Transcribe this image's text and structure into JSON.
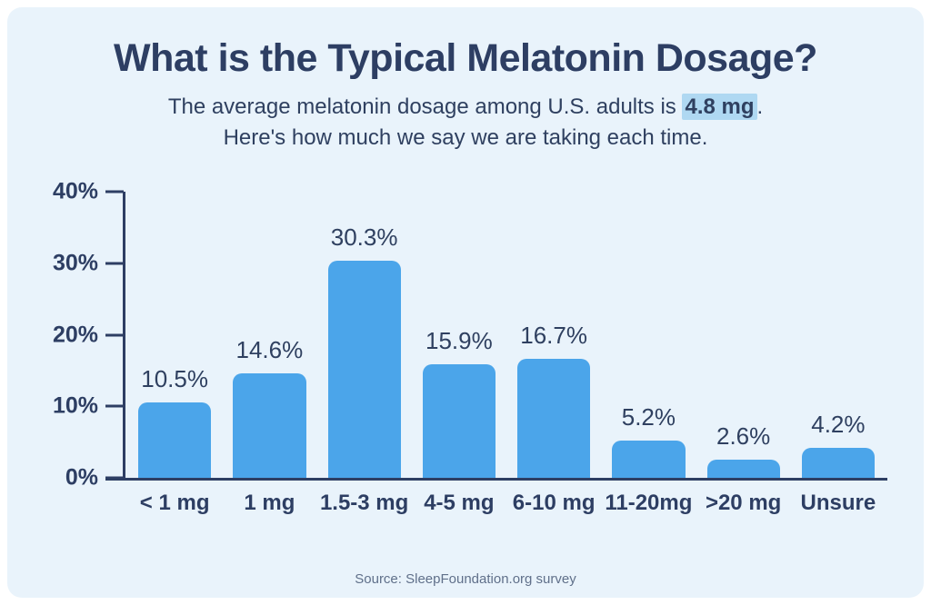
{
  "page": {
    "title": "What is the Typical Melatonin Dosage?",
    "subtitle_part1": "The average melatonin dosage among U.S. adults is ",
    "subtitle_highlight": "4.8 mg",
    "subtitle_after_highlight": ".",
    "subtitle_line2": "Here's how much we say we are taking each time.",
    "source": "Source: SleepFoundation.org survey"
  },
  "colors": {
    "card_background": "#e9f3fb",
    "bar": "#4ba5ea",
    "navy": "#2d3e63",
    "navy_soft": "#2f4060",
    "highlight": "#afd8f2",
    "source_text": "#60708a"
  },
  "chart_data": {
    "type": "bar",
    "categories": [
      "< 1 mg",
      "1 mg",
      "1.5-3 mg",
      "4-5 mg",
      "6-10 mg",
      "11-20mg",
      ">20 mg",
      "Unsure"
    ],
    "values": [
      10.5,
      14.6,
      30.3,
      15.9,
      16.7,
      5.2,
      2.6,
      4.2
    ],
    "value_labels": [
      "10.5%",
      "14.6%",
      "30.3%",
      "15.9%",
      "16.7%",
      "5.2%",
      "2.6%",
      "4.2%"
    ],
    "y_ticks": [
      {
        "label": "40%",
        "value": 40
      },
      {
        "label": "30%",
        "value": 30
      },
      {
        "label": "20%",
        "value": 20
      },
      {
        "label": "10%",
        "value": 10
      },
      {
        "label": "0%",
        "value": 0
      }
    ],
    "ylim": [
      0,
      40
    ],
    "title": "What is the Typical Melatonin Dosage?",
    "xlabel": "",
    "ylabel": "",
    "grid": false,
    "legend": false
  }
}
